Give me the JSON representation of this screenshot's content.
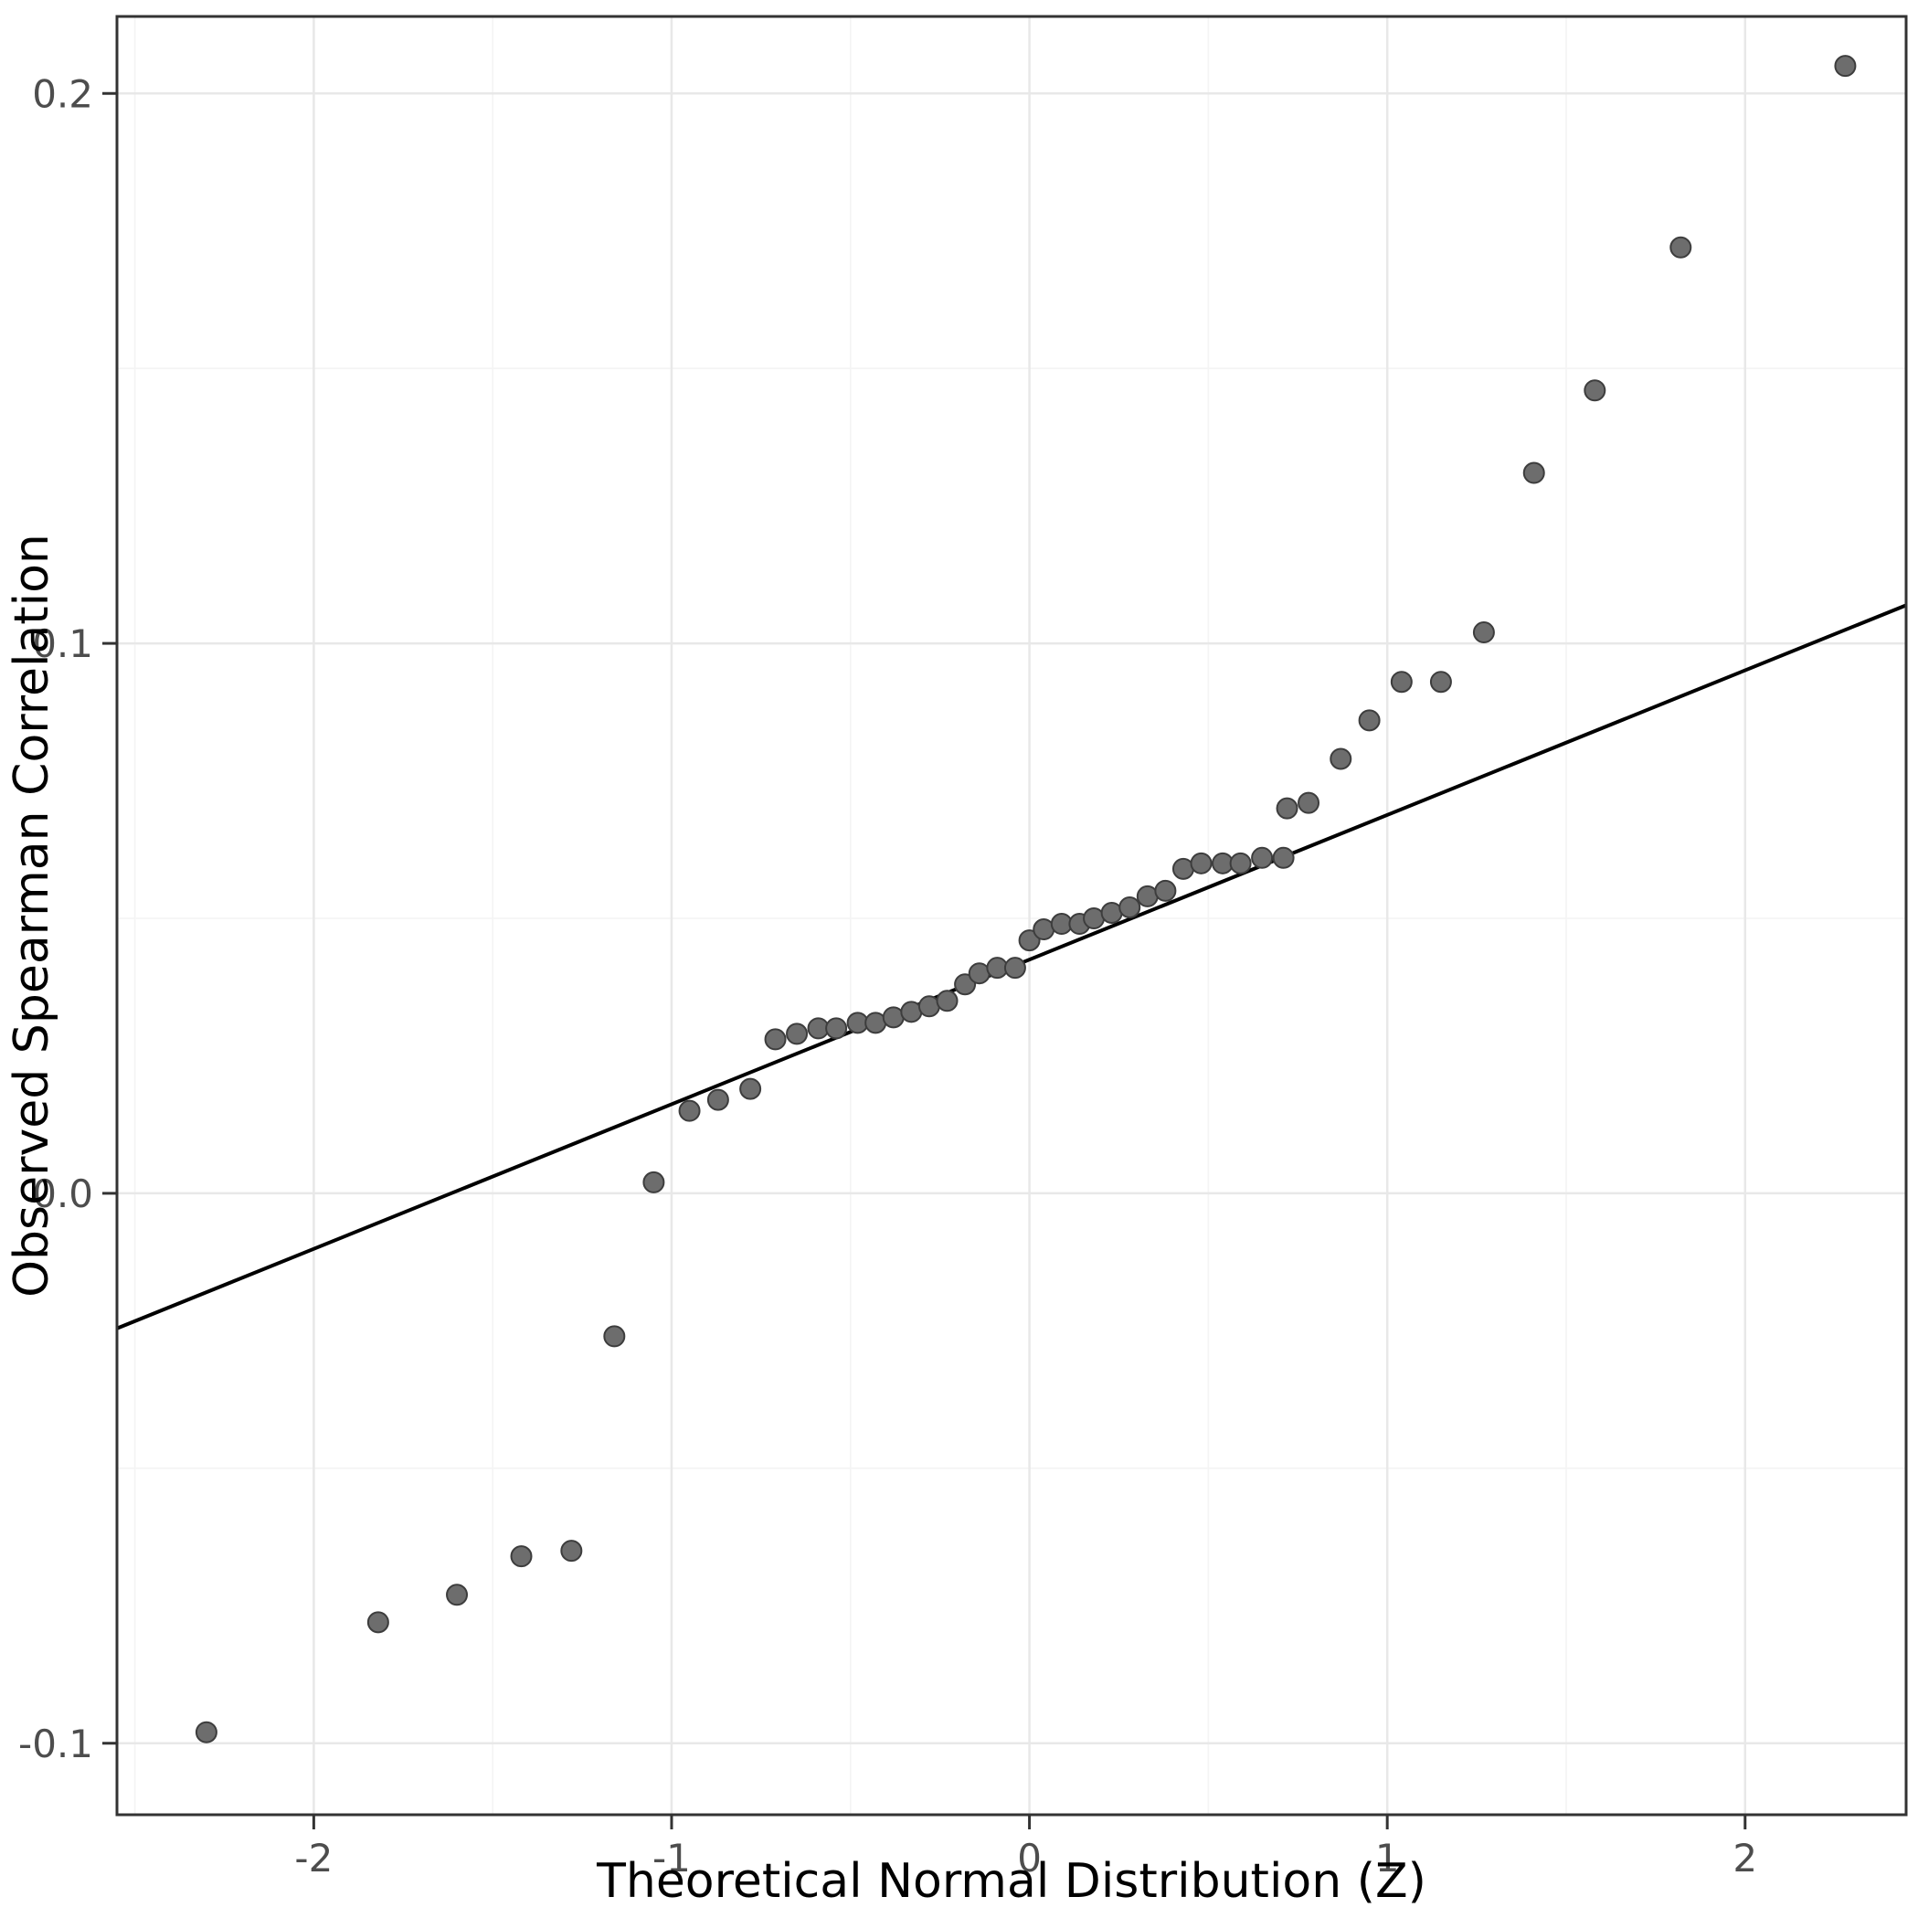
{
  "figure": {
    "background": "#ffffff"
  },
  "chart_data": {
    "type": "scatter",
    "title": "",
    "xlabel": "Theoretical Normal Distribution (Z)",
    "ylabel": "Observed Spearman Correlation",
    "xlim": [
      -2.55,
      2.45
    ],
    "ylim": [
      -0.113,
      0.214
    ],
    "x_ticks": [
      -2,
      -1,
      0,
      1,
      2
    ],
    "x_tick_labels": [
      "-2",
      "-1",
      "0",
      "1",
      "2"
    ],
    "x_minor_ticks": [
      -2.5,
      -1.5,
      -0.5,
      0.5,
      1.5
    ],
    "y_ticks": [
      -0.1,
      0.0,
      0.1,
      0.2
    ],
    "y_tick_labels": [
      "-0.1",
      "0.0",
      "0.1",
      "0.2"
    ],
    "y_minor_ticks": [
      -0.05,
      0.05,
      0.15
    ],
    "grid": "major-and-minor",
    "legend": "none",
    "series": [
      {
        "name": "qq-points",
        "type": "scatter",
        "marker": "circle",
        "points": [
          [
            -2.3,
            -0.098
          ],
          [
            -1.82,
            -0.078
          ],
          [
            -1.6,
            -0.073
          ],
          [
            -1.42,
            -0.066
          ],
          [
            -1.28,
            -0.065
          ],
          [
            -1.16,
            -0.026
          ],
          [
            -1.05,
            0.002
          ],
          [
            -0.95,
            0.015
          ],
          [
            -0.87,
            0.017
          ],
          [
            -0.78,
            0.019
          ],
          [
            -0.71,
            0.028
          ],
          [
            -0.65,
            0.029
          ],
          [
            -0.59,
            0.03
          ],
          [
            -0.54,
            0.03
          ],
          [
            -0.48,
            0.031
          ],
          [
            -0.43,
            0.031
          ],
          [
            -0.38,
            0.032
          ],
          [
            -0.33,
            0.033
          ],
          [
            -0.28,
            0.034
          ],
          [
            -0.23,
            0.035
          ],
          [
            -0.18,
            0.038
          ],
          [
            -0.14,
            0.04
          ],
          [
            -0.09,
            0.041
          ],
          [
            -0.04,
            0.041
          ],
          [
            0.0,
            0.046
          ],
          [
            0.04,
            0.048
          ],
          [
            0.09,
            0.049
          ],
          [
            0.14,
            0.049
          ],
          [
            0.18,
            0.05
          ],
          [
            0.23,
            0.051
          ],
          [
            0.28,
            0.052
          ],
          [
            0.33,
            0.054
          ],
          [
            0.38,
            0.055
          ],
          [
            0.43,
            0.059
          ],
          [
            0.48,
            0.06
          ],
          [
            0.54,
            0.06
          ],
          [
            0.59,
            0.06
          ],
          [
            0.65,
            0.061
          ],
          [
            0.71,
            0.061
          ],
          [
            0.72,
            0.07
          ],
          [
            0.78,
            0.071
          ],
          [
            0.87,
            0.079
          ],
          [
            0.95,
            0.086
          ],
          [
            1.04,
            0.093
          ],
          [
            1.15,
            0.093
          ],
          [
            1.27,
            0.102
          ],
          [
            1.41,
            0.131
          ],
          [
            1.58,
            0.146
          ],
          [
            1.82,
            0.172
          ],
          [
            2.28,
            0.205
          ]
        ]
      },
      {
        "name": "qq-reference-line",
        "type": "line",
        "slope": 0.0263,
        "intercept": 0.0425,
        "equation": "y = 0.0425 + 0.0263 * z"
      }
    ],
    "style": {
      "point_fill": "#6d6d6d",
      "point_stroke": "#3d3d3d",
      "point_radius": 11,
      "line_color": "#000000",
      "line_width": 4,
      "panel_border": "#333333",
      "grid_major": "#e8e8e8",
      "grid_minor": "#f4f4f4",
      "tick_color": "#333333",
      "tick_label_color": "#4d4d4d",
      "axis_title_color": "#000000",
      "panel_background": "#ffffff"
    }
  }
}
